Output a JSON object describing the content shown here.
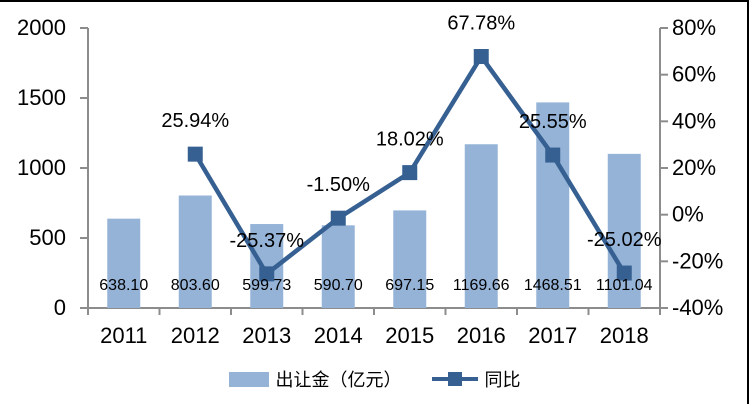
{
  "chart_data": {
    "type": "combo",
    "title": "",
    "categories": [
      "2011",
      "2012",
      "2013",
      "2014",
      "2015",
      "2016",
      "2017",
      "2018"
    ],
    "series": [
      {
        "name": "出让金（亿元）",
        "chart": "bar",
        "axis": "left",
        "color": "#95b3d7",
        "values": [
          638.1,
          803.6,
          599.73,
          590.7,
          697.15,
          1169.66,
          1468.51,
          1101.04
        ],
        "labels": [
          "638.10",
          "803.60",
          "599.73",
          "590.70",
          "697.15",
          "1169.66",
          "1468.51",
          "1101.04"
        ]
      },
      {
        "name": "同比",
        "chart": "line",
        "axis": "right",
        "color": "#366092",
        "values": [
          null,
          25.94,
          -25.37,
          -1.5,
          18.02,
          67.78,
          25.55,
          -25.02
        ],
        "labels": [
          "",
          "25.94%",
          "-25.37%",
          "-1.50%",
          "18.02%",
          "67.78%",
          "25.55%",
          "-25.02%"
        ]
      }
    ],
    "left_axis": {
      "min": 0,
      "max": 2000,
      "tick_values": [
        0,
        500,
        1000,
        1500,
        2000
      ],
      "tick_labels": [
        "0",
        "500",
        "1000",
        "1500",
        "2000"
      ]
    },
    "right_axis": {
      "min": -40,
      "max": 80,
      "tick_values": [
        -40,
        -20,
        0,
        20,
        40,
        60,
        80
      ],
      "tick_labels": [
        "-40%",
        "-20%",
        "0%",
        "20%",
        "40%",
        "60%",
        "80%"
      ]
    },
    "grid": false,
    "legend_position": "bottom"
  },
  "colors": {
    "axis": "#8c8c8c",
    "text": "#000000",
    "border": "#000000",
    "background": "#ffffff"
  }
}
